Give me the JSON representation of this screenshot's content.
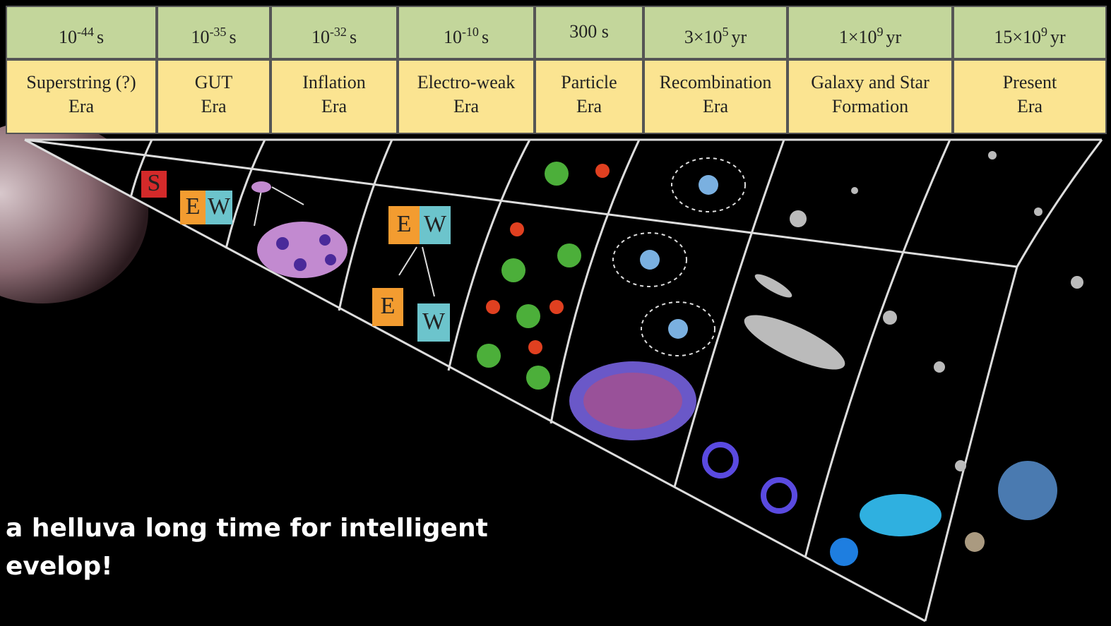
{
  "timeline": {
    "columns": [
      {
        "time": {
          "base": "10",
          "exp": "-44",
          "unit": "s"
        },
        "era": [
          "Superstring (?)",
          "Era"
        ]
      },
      {
        "time": {
          "base": "10",
          "exp": "-35",
          "unit": "s"
        },
        "era": [
          "GUT",
          "Era"
        ]
      },
      {
        "time": {
          "base": "10",
          "exp": "-32",
          "unit": "s"
        },
        "era": [
          "Inflation",
          "Era"
        ]
      },
      {
        "time": {
          "base": "10",
          "exp": "-10",
          "unit": "s"
        },
        "era": [
          "Electro-weak",
          "Era"
        ]
      },
      {
        "time": {
          "base": "300",
          "unit": "s"
        },
        "era": [
          "Particle",
          "Era"
        ]
      },
      {
        "time": {
          "base": "3×10",
          "exp": "5",
          "unit": "yr"
        },
        "era": [
          "Recombination",
          "Era"
        ]
      },
      {
        "time": {
          "base": "1×10",
          "exp": "9",
          "unit": "yr"
        },
        "era": [
          "Galaxy and Star",
          "Formation"
        ]
      },
      {
        "time": {
          "base": "15×10",
          "exp": "9",
          "unit": "yr"
        },
        "era": [
          "Present",
          "Era"
        ]
      }
    ]
  },
  "diagram": {
    "labels": [
      "S",
      "E",
      "W",
      "E",
      "W",
      "E",
      "W"
    ]
  },
  "caption": [
    "a helluva long time for intelligent",
    "evelop!"
  ]
}
